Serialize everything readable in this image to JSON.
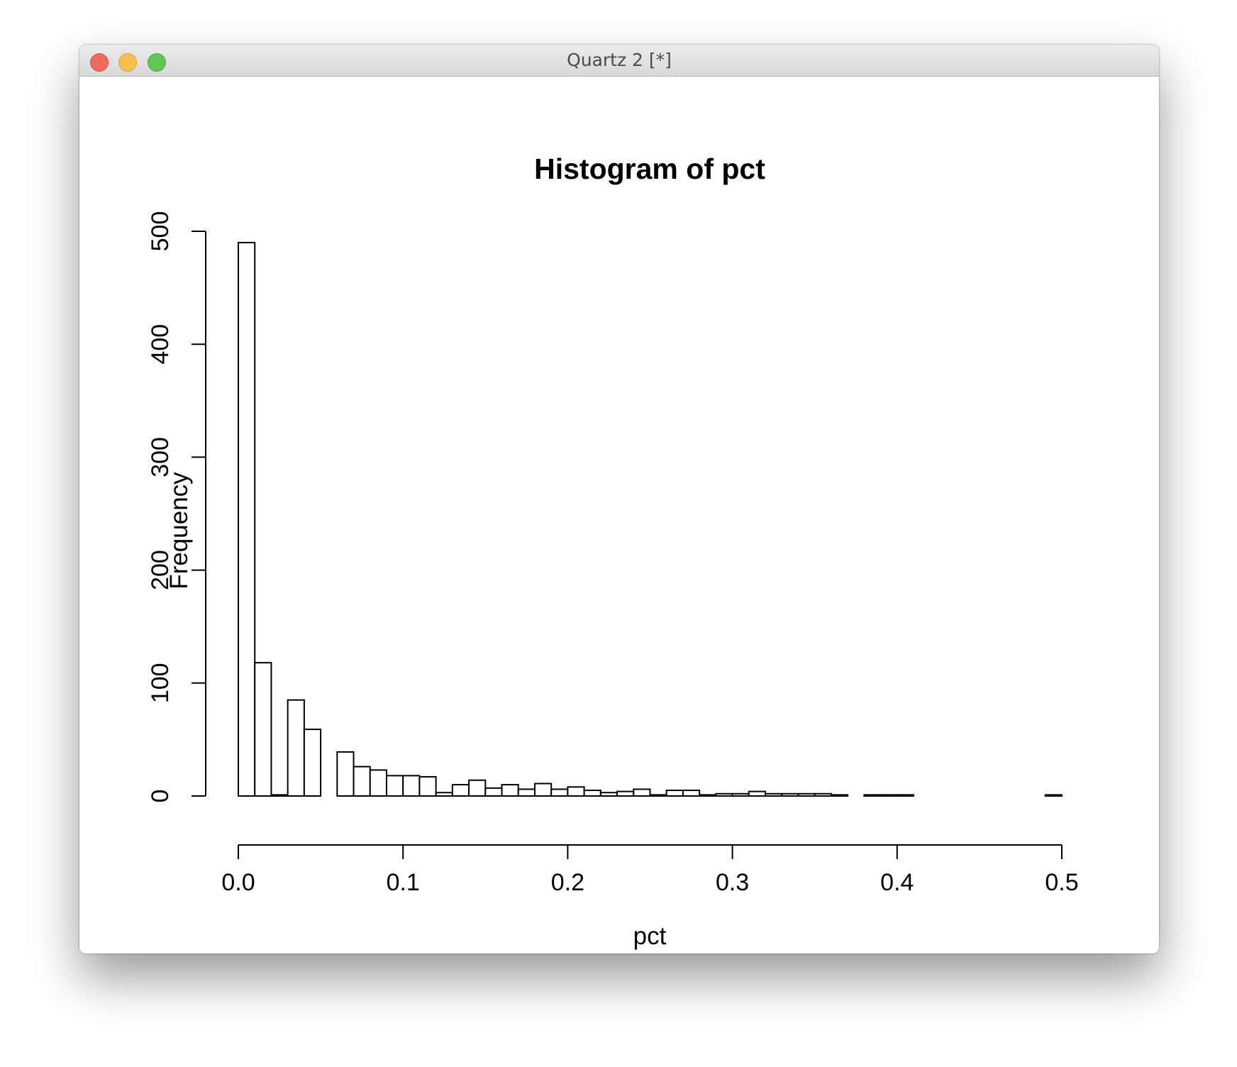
{
  "window": {
    "title": "Quartz 2 [*]",
    "colors": {
      "close": "#ed6a5e",
      "minimize": "#f5bf4f",
      "maximize": "#62c655"
    }
  },
  "chart_data": {
    "type": "bar",
    "title": "Histogram of pct",
    "xlabel": "pct",
    "ylabel": "Frequency",
    "bin_width": 0.01,
    "xlim": [
      0,
      0.5
    ],
    "ylim": [
      0,
      500
    ],
    "x_ticks": [
      "0.0",
      "0.1",
      "0.2",
      "0.3",
      "0.4",
      "0.5"
    ],
    "y_ticks": [
      "0",
      "100",
      "200",
      "300",
      "400",
      "500"
    ],
    "bin_starts": [
      0.0,
      0.01,
      0.02,
      0.03,
      0.04,
      0.05,
      0.06,
      0.07,
      0.08,
      0.09,
      0.1,
      0.11,
      0.12,
      0.13,
      0.14,
      0.15,
      0.16,
      0.17,
      0.18,
      0.19,
      0.2,
      0.21,
      0.22,
      0.23,
      0.24,
      0.25,
      0.26,
      0.27,
      0.28,
      0.29,
      0.3,
      0.31,
      0.32,
      0.33,
      0.34,
      0.35,
      0.36,
      0.37,
      0.38,
      0.39,
      0.4,
      0.41,
      0.42,
      0.43,
      0.44,
      0.45,
      0.46,
      0.47,
      0.48,
      0.49
    ],
    "values": [
      490,
      118,
      1,
      85,
      59,
      0,
      39,
      26,
      23,
      18,
      18,
      17,
      3,
      10,
      14,
      7,
      10,
      6,
      11,
      6,
      8,
      5,
      3,
      4,
      6,
      1,
      5,
      5,
      1,
      2,
      2,
      4,
      2,
      2,
      2,
      2,
      1,
      0,
      1,
      1,
      1,
      0,
      0,
      0,
      0,
      0,
      0,
      0,
      0,
      1
    ]
  }
}
